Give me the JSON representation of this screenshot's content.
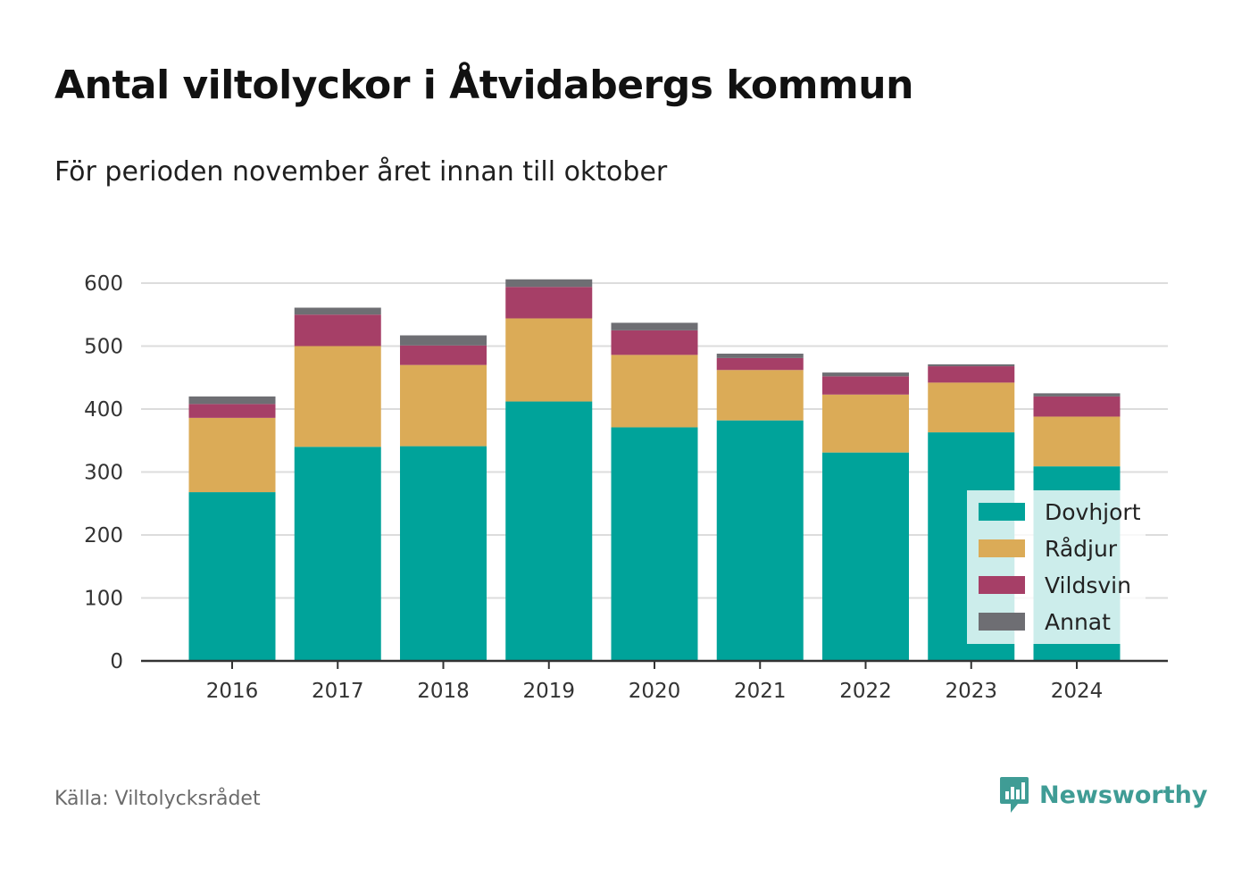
{
  "title": "Antal viltolyckor i Åtvidabergs kommun",
  "subtitle": "För perioden november året innan till oktober",
  "source": "Källa: Viltolycksrådet",
  "brand": "Newsworthy",
  "chart_data": {
    "type": "bar",
    "stacked": true,
    "categories": [
      "2016",
      "2017",
      "2018",
      "2019",
      "2020",
      "2021",
      "2022",
      "2023",
      "2024"
    ],
    "series": [
      {
        "name": "Dovhjort",
        "color": "#00a39a",
        "values": [
          268,
          340,
          341,
          412,
          371,
          382,
          331,
          363,
          309
        ]
      },
      {
        "name": "Rådjur",
        "color": "#dbab57",
        "values": [
          118,
          160,
          129,
          132,
          115,
          80,
          92,
          79,
          79
        ]
      },
      {
        "name": "Vildsvin",
        "color": "#a63f67",
        "values": [
          22,
          50,
          31,
          50,
          39,
          19,
          29,
          26,
          32
        ]
      },
      {
        "name": "Annat",
        "color": "#6e6e73",
        "values": [
          12,
          11,
          16,
          12,
          12,
          7,
          6,
          3,
          5
        ]
      }
    ],
    "ylim": [
      0,
      600
    ],
    "yticks": [
      0,
      100,
      200,
      300,
      400,
      500,
      600
    ],
    "grid": true,
    "legend_position": "bottom-right"
  }
}
